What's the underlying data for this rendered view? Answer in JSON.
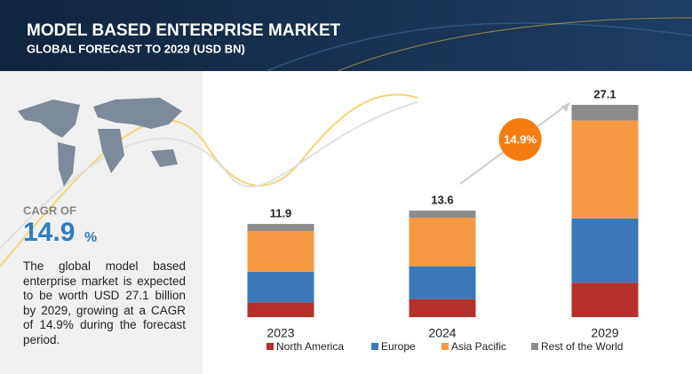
{
  "header": {
    "title": "MODEL BASED ENTERPRISE MARKET",
    "subtitle": "GLOBAL FORECAST TO 2029 (USD BN)"
  },
  "cagr_panel": {
    "label": "CAGR OF",
    "value": "14.9",
    "unit": "%",
    "description": "The global model based enterprise market is expected to be worth USD 27.1 billion by 2029, growing at a CAGR of 14.9% during the forecast period."
  },
  "chart_data": {
    "type": "bar",
    "stacked": true,
    "categories": [
      "2023",
      "2024",
      "2029"
    ],
    "series": [
      {
        "name": "North America",
        "color": "#b5302a",
        "values": [
          1.9,
          2.3,
          4.4
        ]
      },
      {
        "name": "Europe",
        "color": "#3a78b8",
        "values": [
          3.9,
          4.2,
          8.2
        ]
      },
      {
        "name": "Asia Pacific",
        "color": "#f59a43",
        "values": [
          5.2,
          6.2,
          12.5
        ]
      },
      {
        "name": "Rest of the World",
        "color": "#8c8c8c",
        "values": [
          0.9,
          0.9,
          2.0
        ]
      }
    ],
    "totals": [
      11.9,
      13.6,
      27.1
    ],
    "cagr_bubble": "14.9%"
  }
}
